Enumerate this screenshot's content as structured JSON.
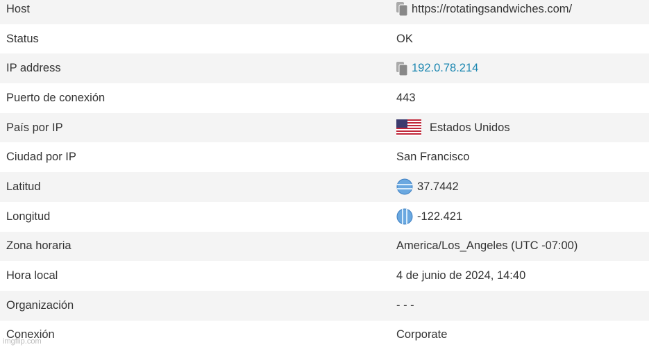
{
  "table": {
    "rows": [
      [
        "Host",
        "https://rotatingsandwiches.com/"
      ],
      [
        "Status",
        "OK"
      ],
      [
        "IP address",
        "192.0.78.214"
      ],
      [
        "Puerto de conexión",
        "443"
      ],
      [
        "País por IP",
        "Estados Unidos"
      ],
      [
        "Ciudad por IP",
        "San Francisco"
      ],
      [
        "Latitud",
        "37.7442"
      ],
      [
        "Longitud",
        "-122.421"
      ],
      [
        "Zona horaria",
        "America/Los_Angeles (UTC -07:00)"
      ],
      [
        "Hora local",
        "4 de junio de 2024, 14:40"
      ],
      [
        "Organización",
        "- - -"
      ],
      [
        "Conexión",
        "Corporate"
      ]
    ]
  },
  "watermark": "imgflip.com"
}
